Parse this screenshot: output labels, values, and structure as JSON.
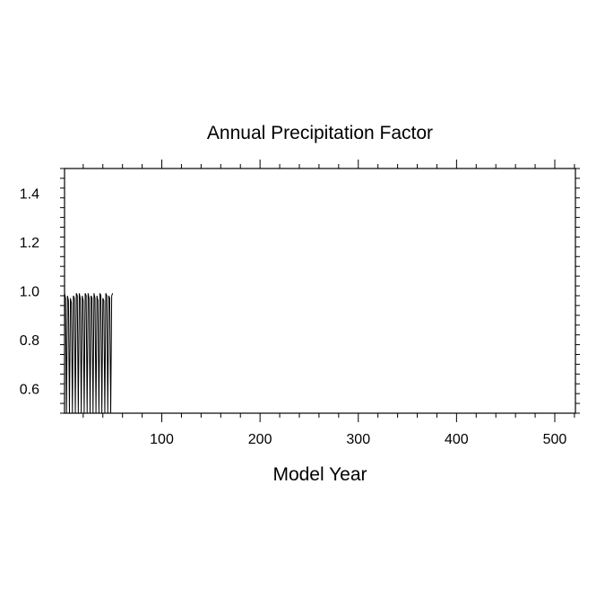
{
  "chart_data": {
    "type": "line",
    "title": "Annual Precipitation Factor",
    "xlabel": "Model Year",
    "ylabel": "",
    "xlim": [
      1,
      521
    ],
    "ylim": [
      0.5,
      1.5
    ],
    "x_ticks": [
      100,
      200,
      300,
      400,
      500
    ],
    "y_ticks": [
      0.6,
      0.8,
      1.0,
      1.2,
      1.4
    ],
    "x_tick_labels": [
      "100",
      "200",
      "300",
      "400",
      "500"
    ],
    "y_tick_labels": [
      "0.6",
      "0.8",
      "1.0",
      "1.2",
      "1.4"
    ],
    "x_minor_step": 20,
    "y_minor_step": 0.04,
    "grid": false,
    "line_color": "#000000",
    "series": [
      {
        "x": [
          1,
          2,
          3,
          4,
          5,
          6,
          7,
          8,
          9,
          10,
          11,
          12,
          13,
          14,
          15,
          16,
          17,
          18,
          19,
          20,
          21,
          22,
          23,
          24,
          25,
          26,
          27,
          28,
          29,
          30,
          31,
          32,
          33,
          34,
          35,
          36,
          37,
          38,
          39,
          40,
          41,
          42,
          43,
          44,
          45,
          46,
          47,
          48,
          49,
          50
        ],
        "values": [
          0.99,
          0.97,
          0.5,
          0.98,
          0.96,
          0.5,
          0.97,
          0.95,
          0.5,
          0.98,
          0.97,
          0.5,
          0.99,
          0.98,
          0.5,
          0.99,
          0.97,
          0.5,
          0.98,
          0.96,
          0.5,
          0.99,
          0.98,
          0.5,
          0.99,
          0.97,
          0.5,
          0.98,
          0.97,
          0.5,
          0.99,
          0.97,
          0.5,
          0.98,
          0.96,
          0.5,
          0.99,
          0.98,
          0.5,
          0.97,
          0.96,
          0.5,
          0.99,
          0.98,
          0.5,
          0.98,
          0.97,
          0.5,
          0.98,
          0.99
        ]
      }
    ]
  }
}
